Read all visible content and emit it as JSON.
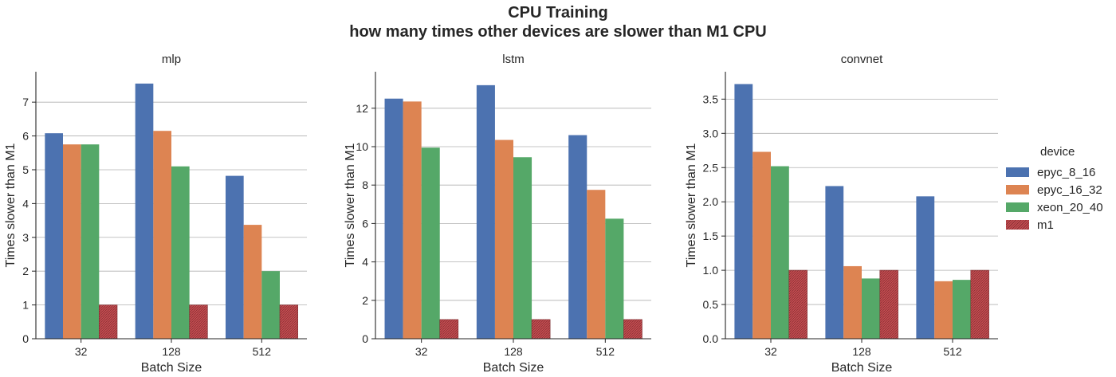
{
  "title": {
    "line1": "CPU Training",
    "line2": "how many times other devices are slower than M1 CPU"
  },
  "legend": {
    "title": "device",
    "placement": "right"
  },
  "chart_data": {
    "type": "bar",
    "grid": "horizontal",
    "categories": [
      "32",
      "128",
      "512"
    ],
    "xlabel": "Batch Size",
    "ylabel": "Times slower than M1",
    "series_names": [
      "epyc_8_16",
      "epyc_16_32",
      "xeon_20_40",
      "m1"
    ],
    "series_colors": [
      "#4c72b0",
      "#dd8452",
      "#55a868",
      "#c44e52"
    ],
    "panels": [
      {
        "title": "mlp",
        "ylim": [
          0,
          7.9
        ],
        "yticks": [
          0,
          1,
          2,
          3,
          4,
          5,
          6,
          7
        ],
        "ytick_labels": [
          "0",
          "1",
          "2",
          "3",
          "4",
          "5",
          "6",
          "7"
        ],
        "series": [
          {
            "name": "epyc_8_16",
            "values": [
              6.08,
              7.55,
              4.82
            ]
          },
          {
            "name": "epyc_16_32",
            "values": [
              5.75,
              6.15,
              3.37
            ]
          },
          {
            "name": "xeon_20_40",
            "values": [
              5.75,
              5.1,
              2.0
            ]
          },
          {
            "name": "m1",
            "values": [
              1.0,
              1.0,
              1.0
            ]
          }
        ]
      },
      {
        "title": "lstm",
        "ylim": [
          0,
          13.9
        ],
        "yticks": [
          0,
          2,
          4,
          6,
          8,
          10,
          12
        ],
        "ytick_labels": [
          "0",
          "2",
          "4",
          "6",
          "8",
          "10",
          "12"
        ],
        "series": [
          {
            "name": "epyc_8_16",
            "values": [
              12.5,
              13.2,
              10.6
            ]
          },
          {
            "name": "epyc_16_32",
            "values": [
              12.35,
              10.35,
              7.75
            ]
          },
          {
            "name": "xeon_20_40",
            "values": [
              9.95,
              9.45,
              6.25
            ]
          },
          {
            "name": "m1",
            "values": [
              1.0,
              1.0,
              1.0
            ]
          }
        ]
      },
      {
        "title": "convnet",
        "ylim": [
          0,
          3.9
        ],
        "yticks": [
          0,
          0.5,
          1.0,
          1.5,
          2.0,
          2.5,
          3.0,
          3.5
        ],
        "ytick_labels": [
          "0.0",
          "0.5",
          "1.0",
          "1.5",
          "2.0",
          "2.5",
          "3.0",
          "3.5"
        ],
        "series": [
          {
            "name": "epyc_8_16",
            "values": [
              3.72,
              2.23,
              2.08
            ]
          },
          {
            "name": "epyc_16_32",
            "values": [
              2.73,
              1.06,
              0.84
            ]
          },
          {
            "name": "xeon_20_40",
            "values": [
              2.52,
              0.88,
              0.86
            ]
          },
          {
            "name": "m1",
            "values": [
              1.0,
              1.0,
              1.0
            ]
          }
        ]
      }
    ]
  }
}
